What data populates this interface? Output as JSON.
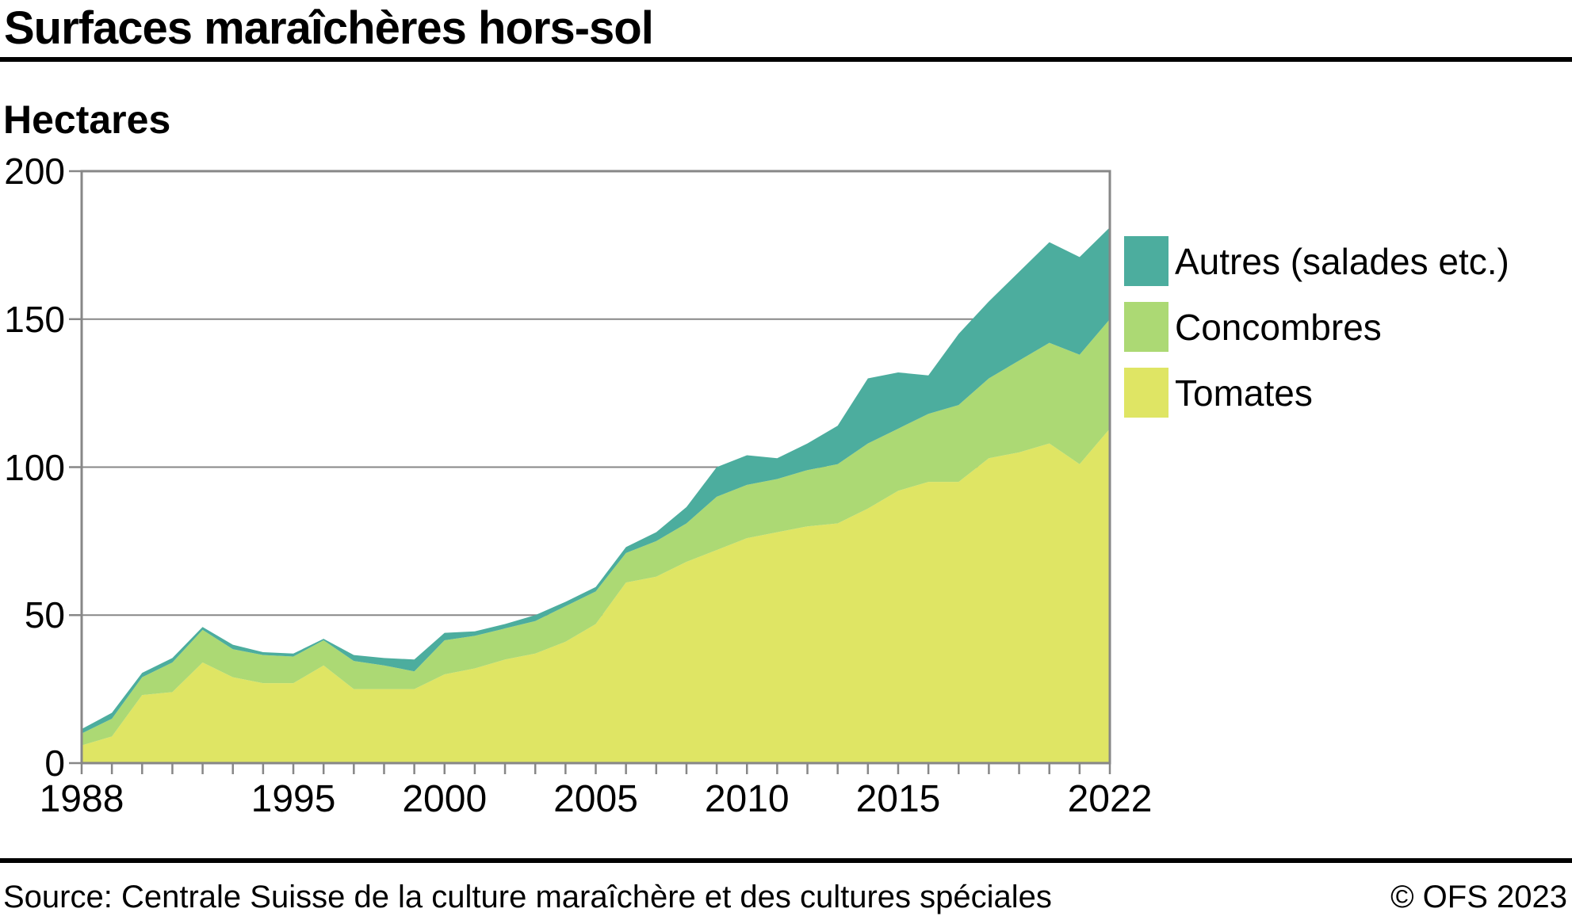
{
  "title": "Surfaces maraîchères hors-sol",
  "y_axis_title": "Hectares",
  "footer": {
    "source": "Source: Centrale Suisse de la culture maraîchère et des cultures spéciales",
    "copyright": "© OFS 2023"
  },
  "legend": {
    "items": [
      {
        "label": "Autres (salades etc.)",
        "color": "#4cad9e"
      },
      {
        "label": "Concombres",
        "color": "#acd974"
      },
      {
        "label": "Tomates",
        "color": "#dfe564"
      }
    ]
  },
  "colors": {
    "grid": "#878787",
    "axis": "#878787",
    "background": "#ffffff",
    "text": "#000000"
  },
  "chart_data": {
    "type": "area",
    "stacked": true,
    "title": "Surfaces maraîchères hors-sol",
    "ylabel": "Hectares",
    "xlabel": "",
    "grid": true,
    "legend_position": "right",
    "ylim": [
      0,
      200
    ],
    "yticks": [
      0,
      50,
      100,
      150,
      200
    ],
    "xticks_labeled": [
      1988,
      1995,
      2000,
      2005,
      2010,
      2015,
      2022
    ],
    "x": [
      1988,
      1989,
      1990,
      1991,
      1992,
      1993,
      1994,
      1995,
      1996,
      1997,
      1998,
      1999,
      2000,
      2001,
      2002,
      2003,
      2004,
      2005,
      2006,
      2007,
      2008,
      2009,
      2010,
      2011,
      2012,
      2013,
      2014,
      2015,
      2016,
      2017,
      2018,
      2019,
      2020,
      2021,
      2022
    ],
    "series": [
      {
        "name": "Tomates",
        "color": "#dfe564",
        "values": [
          6,
          9,
          23,
          24,
          34,
          29,
          27,
          27,
          33,
          25,
          25,
          25,
          30,
          32,
          35,
          37,
          41,
          47,
          61,
          63,
          68,
          72,
          76,
          78,
          80,
          81,
          86,
          92,
          95,
          95,
          103,
          105,
          108,
          101,
          113
        ]
      },
      {
        "name": "Concombres",
        "color": "#acd974",
        "values": [
          4,
          6,
          6,
          10,
          11,
          9.5,
          9.5,
          9,
          8.5,
          9.5,
          8,
          6,
          11.5,
          11,
          10.5,
          11,
          12,
          11,
          10,
          12,
          13,
          18,
          18,
          18,
          19,
          20,
          22,
          21,
          23,
          26,
          27,
          31,
          34,
          37,
          37
        ]
      },
      {
        "name": "Autres (salades etc.)",
        "color": "#4cad9e",
        "values": [
          1.5,
          2,
          1.5,
          1.5,
          1,
          1.5,
          1,
          1,
          0.5,
          2,
          2.5,
          4,
          2.5,
          1.5,
          1.5,
          2,
          1.5,
          1.5,
          2,
          3,
          5.5,
          10,
          10,
          7,
          9,
          13,
          22,
          19,
          13,
          24,
          26,
          30,
          34,
          33,
          31
        ]
      }
    ]
  }
}
